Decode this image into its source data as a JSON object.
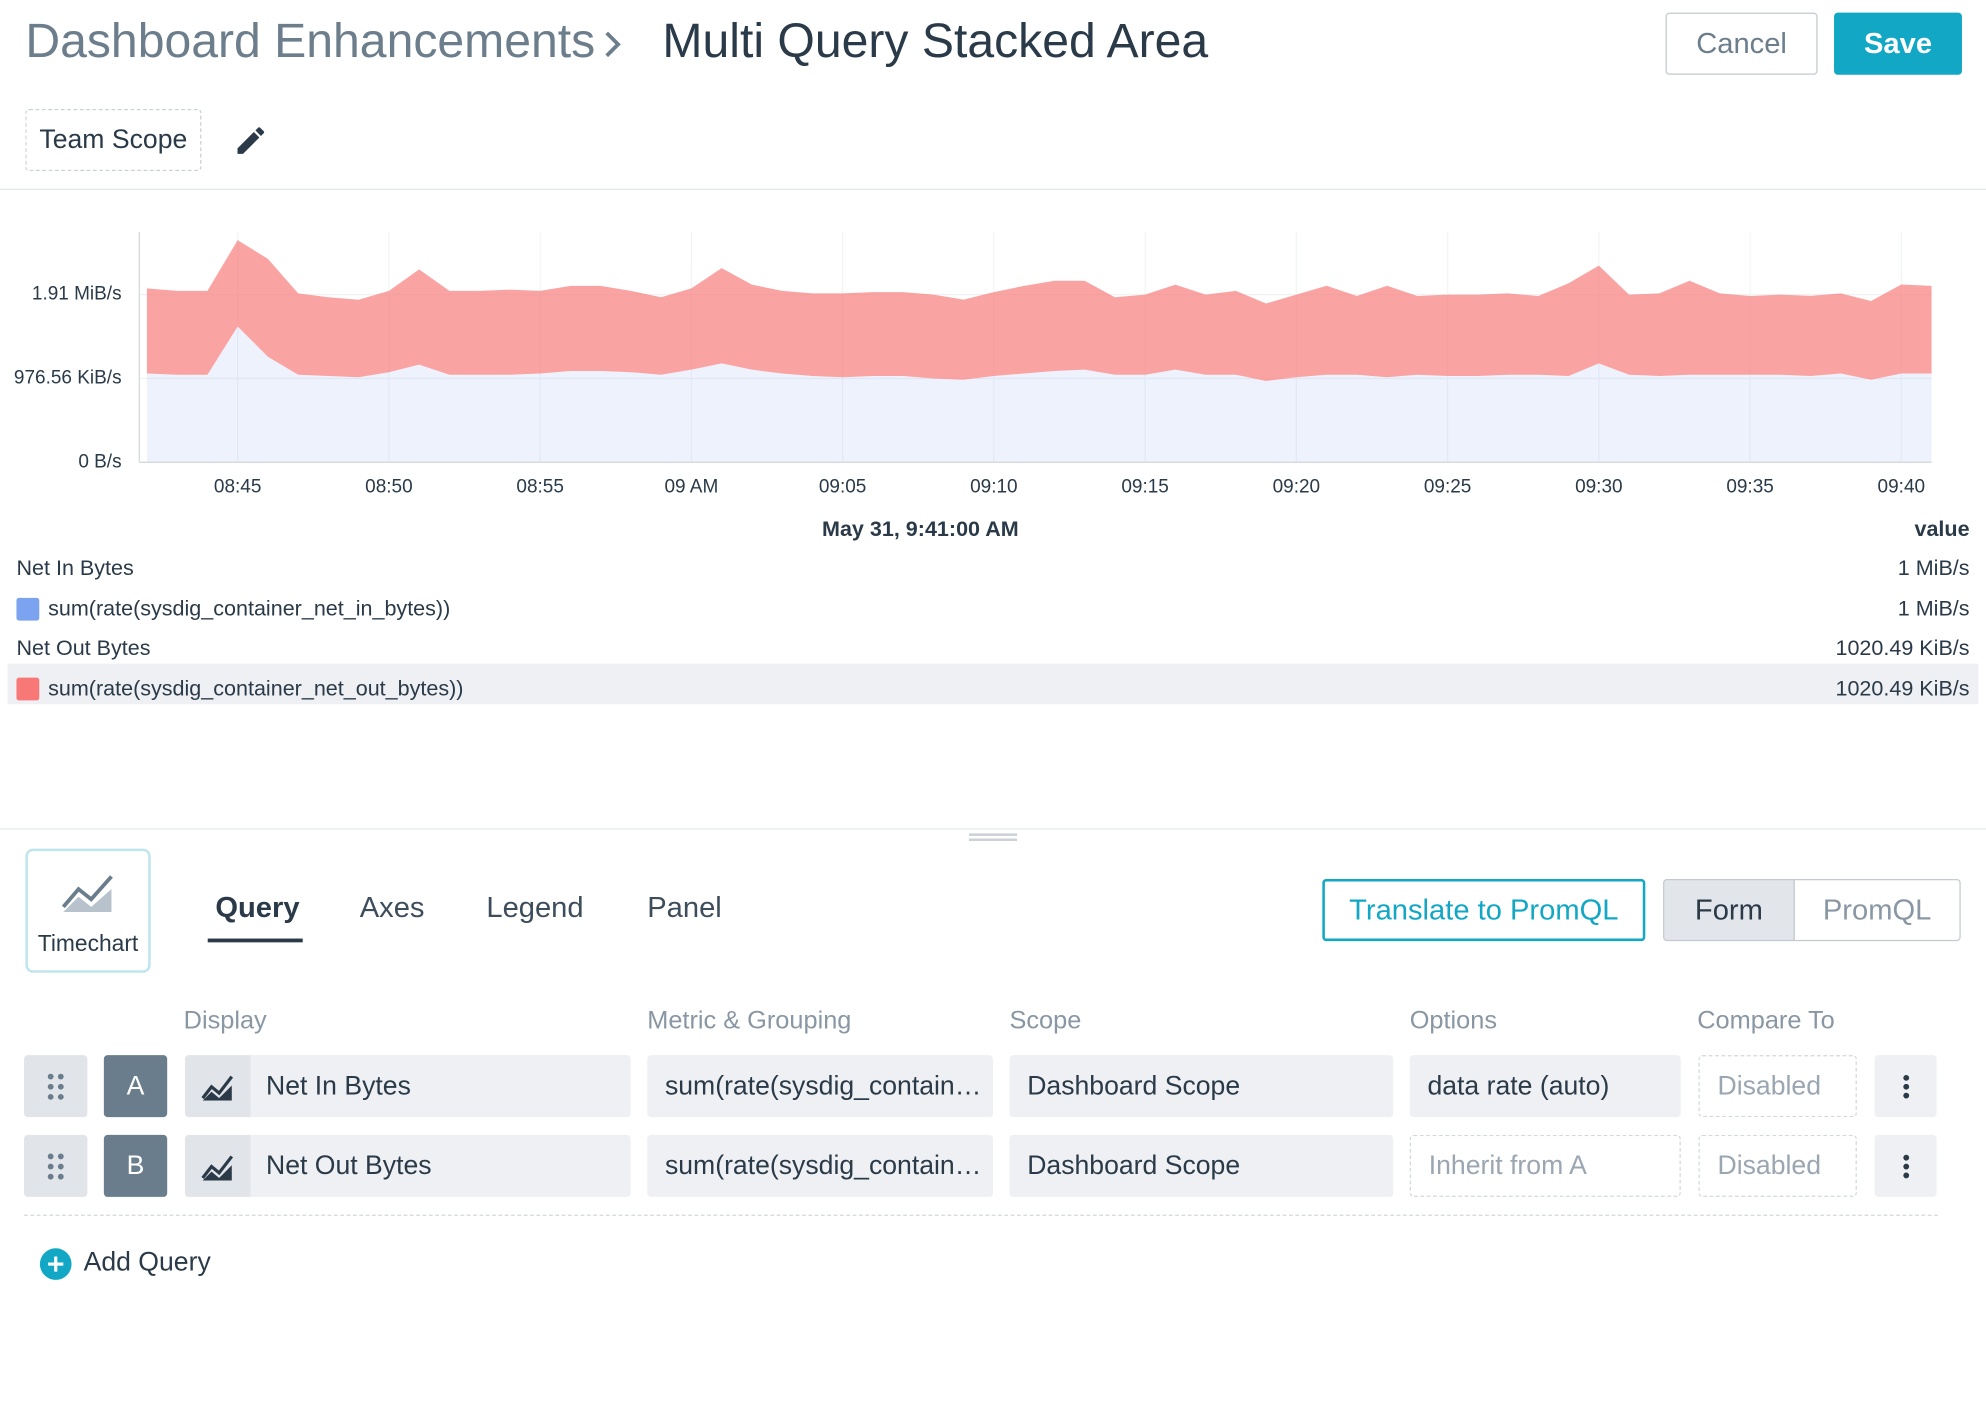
{
  "header": {
    "breadcrumb": "Dashboard Enhancements",
    "title": "Multi Query Stacked Area",
    "cancel": "Cancel",
    "save": "Save",
    "scope": "Team Scope"
  },
  "chart_data": {
    "type": "stacked-area",
    "x": [
      "08:42",
      "08:43",
      "08:44",
      "08:45",
      "08:46",
      "08:47",
      "08:48",
      "08:49",
      "08:50",
      "08:51",
      "08:52",
      "08:53",
      "08:54",
      "08:55",
      "08:56",
      "08:57",
      "08:58",
      "08:59",
      "09:00",
      "09:01",
      "09:02",
      "09:03",
      "09:04",
      "09:05",
      "09:06",
      "09:07",
      "09:08",
      "09:09",
      "09:10",
      "09:11",
      "09:12",
      "09:13",
      "09:14",
      "09:15",
      "09:16",
      "09:17",
      "09:18",
      "09:19",
      "09:20",
      "09:21",
      "09:22",
      "09:23",
      "09:24",
      "09:25",
      "09:26",
      "09:27",
      "09:28",
      "09:29",
      "09:30",
      "09:31",
      "09:32",
      "09:33",
      "09:34",
      "09:35",
      "09:36",
      "09:37",
      "09:38",
      "09:39",
      "09:40",
      "09:41"
    ],
    "xlim": [
      "08:42",
      "09:41"
    ],
    "xticks": [
      "08:45",
      "08:50",
      "08:55",
      {
        "value": "09:00",
        "label": "09 AM"
      },
      "09:05",
      "09:10",
      "09:15",
      "09:20",
      "09:25",
      "09:30",
      "09:35",
      "09:40"
    ],
    "ylim": [
      0,
      2750000
    ],
    "yticks": [
      {
        "value": 0,
        "label": "0 B/s"
      },
      {
        "value": 1000000,
        "label": "976.56 KiB/s"
      },
      {
        "value": 2000000,
        "label": "1.91 MiB/s"
      }
    ],
    "grid": true,
    "series": [
      {
        "name": "sum(rate(sysdig_container_net_in_bytes))",
        "color": "#7ca3f0",
        "values": [
          1060000,
          1045000,
          1045000,
          1620000,
          1260000,
          1045000,
          1030000,
          1015000,
          1075000,
          1165000,
          1045000,
          1045000,
          1045000,
          1060000,
          1090000,
          1090000,
          1075000,
          1045000,
          1105000,
          1180000,
          1105000,
          1060000,
          1030000,
          1015000,
          1030000,
          1030000,
          1000000,
          985000,
          1030000,
          1060000,
          1090000,
          1105000,
          1045000,
          1045000,
          1105000,
          1045000,
          1045000,
          970000,
          1015000,
          1045000,
          1045000,
          1015000,
          1045000,
          1030000,
          1030000,
          1045000,
          1045000,
          1030000,
          1180000,
          1045000,
          1030000,
          1045000,
          1045000,
          1045000,
          1045000,
          1030000,
          1060000,
          985000,
          1060000,
          1060000
        ]
      },
      {
        "name": "sum(rate(sysdig_container_net_out_bytes))",
        "color": "#f87777",
        "values": [
          1015000,
          1000000,
          1000000,
          1030000,
          1167000,
          970000,
          939000,
          924000,
          970000,
          1136000,
          1000000,
          1000000,
          1015000,
          985000,
          1015000,
          1015000,
          970000,
          924000,
          970000,
          1136000,
          1015000,
          985000,
          985000,
          1000000,
          1000000,
          1000000,
          1000000,
          955000,
          1000000,
          1045000,
          1076000,
          1061000,
          924000,
          955000,
          1015000,
          955000,
          1000000,
          924000,
          985000,
          1061000,
          939000,
          1091000,
          939000,
          970000,
          970000,
          970000,
          939000,
          1106000,
          1167000,
          955000,
          985000,
          1121000,
          970000,
          939000,
          955000,
          955000,
          955000,
          939000,
          1061000,
          1045000
        ]
      }
    ],
    "legend_time": "May 31, 9:41:00 AM",
    "legend_value_header": "value",
    "legend_rows": [
      {
        "group": "Net In Bytes",
        "group_value": "1 MiB/s",
        "value": "1 MiB/s"
      },
      {
        "group": "Net Out Bytes",
        "group_value": "1020.49 KiB/s",
        "value": "1020.49 KiB/s"
      }
    ]
  },
  "editor": {
    "chart_type": "Timechart",
    "tabs": [
      "Query",
      "Axes",
      "Legend",
      "Panel"
    ],
    "translate": "Translate to PromQL",
    "modes": [
      "Form",
      "PromQL"
    ],
    "columns": [
      "Display",
      "Metric & Grouping",
      "Scope",
      "Options",
      "Compare To"
    ],
    "queries": [
      {
        "letter": "A",
        "display": "Net In Bytes",
        "metric": "sum(rate(sysdig_contain…",
        "scope": "Dashboard Scope",
        "options": "data rate (auto)",
        "compare": "Disabled"
      },
      {
        "letter": "B",
        "display": "Net Out Bytes",
        "metric": "sum(rate(sysdig_contain…",
        "scope": "Dashboard Scope",
        "options": "Inherit from A",
        "compare": "Disabled"
      }
    ],
    "add_query": "Add Query"
  }
}
